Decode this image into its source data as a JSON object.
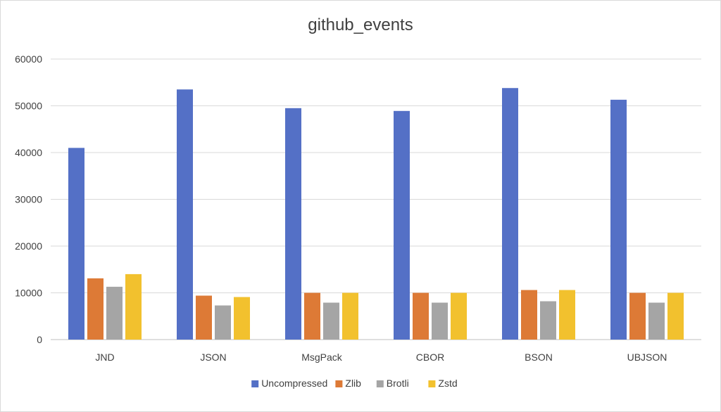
{
  "chart_data": {
    "type": "bar",
    "title": "github_events",
    "xlabel": "",
    "ylabel": "",
    "ylim": [
      0,
      60000
    ],
    "yticks": [
      0,
      10000,
      20000,
      30000,
      40000,
      50000,
      60000
    ],
    "grid": true,
    "legend_position": "bottom",
    "categories": [
      "JND",
      "JSON",
      "MsgPack",
      "CBOR",
      "BSON",
      "UBJSON"
    ],
    "series": [
      {
        "name": "Uncompressed",
        "color": "#5470c6",
        "values": [
          41000,
          53500,
          49500,
          48900,
          53800,
          51300
        ]
      },
      {
        "name": "Zlib",
        "color": "#dd7a36",
        "values": [
          13100,
          9400,
          10000,
          10000,
          10600,
          10000
        ]
      },
      {
        "name": "Brotli",
        "color": "#a5a5a5",
        "values": [
          11300,
          7300,
          7900,
          7900,
          8200,
          7900
        ]
      },
      {
        "name": "Zstd",
        "color": "#f2c12e",
        "values": [
          14000,
          9100,
          10000,
          10000,
          10600,
          10000
        ]
      }
    ]
  }
}
